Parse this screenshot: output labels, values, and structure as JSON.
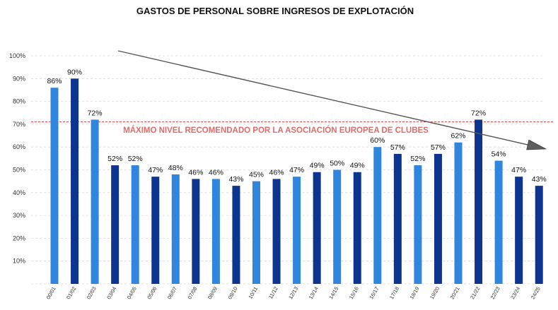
{
  "chart_data": {
    "type": "bar",
    "title": "GASTOS DE PERSONAL SOBRE INGRESOS DE EXPLOTACIÓN",
    "xlabel": "",
    "ylabel": "",
    "ylim": [
      0,
      100
    ],
    "y_ticks": [
      "",
      "10%",
      "20%",
      "30%",
      "40%",
      "50%",
      "60%",
      "70%",
      "80%",
      "90%",
      "100%"
    ],
    "grid": true,
    "categories": [
      "00/01",
      "01/02",
      "02/03",
      "03/04",
      "04/05",
      "05/06",
      "06/07",
      "07/08",
      "08/09",
      "09/10",
      "10/11",
      "11/12",
      "12/13",
      "13/14",
      "14/15",
      "15/16",
      "16/17",
      "17/18",
      "18/19",
      "19/20",
      "20/21",
      "21/22",
      "22/23",
      "23/24",
      "24/25"
    ],
    "values": [
      86,
      90,
      72,
      52,
      52,
      47,
      48,
      46,
      46,
      43,
      45,
      46,
      47,
      49,
      50,
      49,
      60,
      57,
      52,
      57,
      62,
      72,
      54,
      47,
      43
    ],
    "value_labels": [
      "86%",
      "90%",
      "72%",
      "52%",
      "52%",
      "47%",
      "48%",
      "46%",
      "46%",
      "43%",
      "45%",
      "46%",
      "47%",
      "49%",
      "50%",
      "49%",
      "60%",
      "57%",
      "52%",
      "57%",
      "62%",
      "72%",
      "54%",
      "47%",
      "43%"
    ],
    "bar_tones": [
      "light",
      "dark",
      "light",
      "dark",
      "light",
      "dark",
      "light",
      "dark",
      "light",
      "dark",
      "light",
      "dark",
      "light",
      "dark",
      "light",
      "dark",
      "light",
      "dark",
      "light",
      "dark",
      "light",
      "dark",
      "light",
      "dark",
      "dark"
    ],
    "reference_line": {
      "value": 71,
      "label": "MÁXIMO NIVEL RECOMENDADO POR LA ASOCIACIÓN EUROPEA DE CLUBES",
      "color": "#e0413e"
    },
    "trend_arrow": {
      "from": [
        0,
        100
      ],
      "to": [
        23,
        83
      ],
      "color": "#555555"
    },
    "colors": {
      "light": "#2f86dc",
      "dark": "#0d3590",
      "label_color": "#e26b6b"
    }
  }
}
